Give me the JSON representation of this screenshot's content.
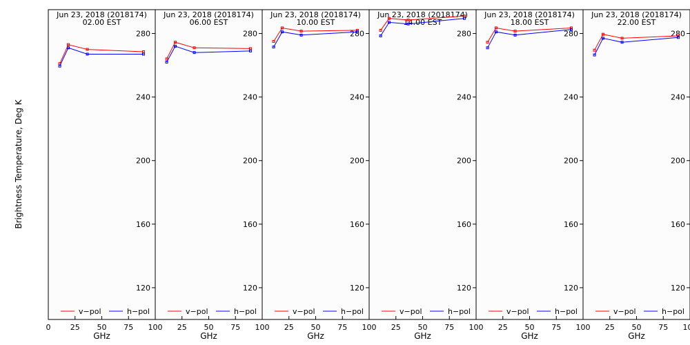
{
  "chart_data": {
    "type": "line",
    "ylabel": "Brightness Temperature, Deg K",
    "xlabel": "GHz",
    "xlim": [
      0,
      100
    ],
    "ylim": [
      100,
      295
    ],
    "xticks": [
      0,
      25,
      50,
      75,
      100
    ],
    "yticks": [
      120,
      160,
      200,
      240,
      280
    ],
    "legend": [
      {
        "name": "v−pol",
        "color": "#ff0000"
      },
      {
        "name": "h−pol",
        "color": "#0000ff"
      }
    ],
    "legend_position": "bottom",
    "grid": false,
    "background": "#fcfcfc",
    "panels": [
      {
        "title_line1": "Jun 23, 2018 (2018174)",
        "title_line2": "02.00 EST",
        "x": [
          10.7,
          18.7,
          36.5,
          89.0
        ],
        "series": [
          {
            "name": "v−pol",
            "color": "#ff0000",
            "values": [
              261.0,
              273.0,
              270.0,
              268.5
            ]
          },
          {
            "name": "h−pol",
            "color": "#0000ff",
            "values": [
              259.5,
              271.0,
              267.0,
              267.0
            ]
          }
        ]
      },
      {
        "title_line1": "Jun 23, 2018 (2018174)",
        "title_line2": "06.00 EST",
        "x": [
          10.7,
          18.7,
          36.5,
          89.0
        ],
        "series": [
          {
            "name": "v−pol",
            "color": "#ff0000",
            "values": [
              264.0,
              274.5,
              271.0,
              270.5
            ]
          },
          {
            "name": "h−pol",
            "color": "#0000ff",
            "values": [
              262.0,
              272.0,
              268.0,
              269.0
            ]
          }
        ]
      },
      {
        "title_line1": "Jun 23, 2018 (2018174)",
        "title_line2": "10.00 EST",
        "x": [
          10.7,
          18.7,
          36.5,
          89.0
        ],
        "series": [
          {
            "name": "v−pol",
            "color": "#ff0000",
            "values": [
              275.0,
              283.5,
              281.5,
              282.0
            ]
          },
          {
            "name": "h−pol",
            "color": "#0000ff",
            "values": [
              271.5,
              281.0,
              279.0,
              281.0
            ]
          }
        ]
      },
      {
        "title_line1": "Jun 23, 2018 (2018174)",
        "title_line2": "14.00 EST",
        "x": [
          10.7,
          18.7,
          36.5,
          89.0
        ],
        "series": [
          {
            "name": "v−pol",
            "color": "#ff0000",
            "values": [
              282.0,
              289.5,
              288.5,
              291.0
            ]
          },
          {
            "name": "h−pol",
            "color": "#0000ff",
            "values": [
              278.5,
              287.0,
              286.0,
              289.5
            ]
          }
        ]
      },
      {
        "title_line1": "Jun 23, 2018 (2018174)",
        "title_line2": "18.00 EST",
        "x": [
          10.7,
          18.7,
          36.5,
          89.0
        ],
        "series": [
          {
            "name": "v−pol",
            "color": "#ff0000",
            "values": [
              274.5,
              283.5,
              281.5,
              283.5
            ]
          },
          {
            "name": "h−pol",
            "color": "#0000ff",
            "values": [
              271.0,
              281.0,
              279.0,
              282.5
            ]
          }
        ]
      },
      {
        "title_line1": "Jun 23, 2018 (2018174)",
        "title_line2": "22.00 EST",
        "x": [
          10.7,
          18.7,
          36.5,
          89.0
        ],
        "series": [
          {
            "name": "v−pol",
            "color": "#ff0000",
            "values": [
              269.5,
              279.5,
              277.0,
              278.5
            ]
          },
          {
            "name": "h−pol",
            "color": "#0000ff",
            "values": [
              266.5,
              277.0,
              274.5,
              277.5
            ]
          }
        ]
      }
    ]
  }
}
